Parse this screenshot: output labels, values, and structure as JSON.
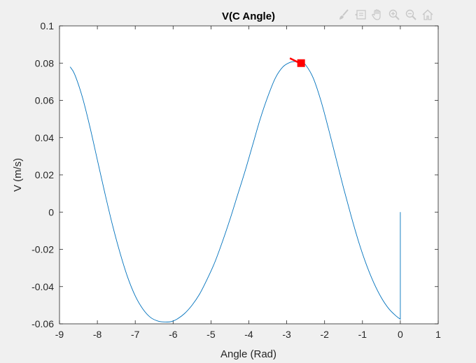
{
  "chart_data": {
    "type": "line",
    "title": "V(C Angle)",
    "xlabel": "Angle (Rad)",
    "ylabel": "V (m/s)",
    "xlim": [
      -9,
      1
    ],
    "ylim": [
      -0.06,
      0.1
    ],
    "xticks": [
      "-9",
      "-8",
      "-7",
      "-6",
      "-5",
      "-4",
      "-3",
      "-2",
      "-1",
      "0",
      "1"
    ],
    "yticks": [
      "-0.06",
      "-0.04",
      "-0.02",
      "0",
      "0.02",
      "0.04",
      "0.06",
      "0.08",
      "0.1"
    ],
    "grid": false,
    "series": [
      {
        "color": "#0072bd",
        "x": [
          -8.72,
          -8.6,
          -8.4,
          -8.2,
          -8.0,
          -7.8,
          -7.6,
          -7.4,
          -7.2,
          -7.0,
          -6.8,
          -6.6,
          -6.4,
          -6.2,
          -6.05,
          -5.9,
          -5.7,
          -5.5,
          -5.3,
          -5.1,
          -4.9,
          -4.7,
          -4.5,
          -4.3,
          -4.1,
          -3.9,
          -3.7,
          -3.5,
          -3.3,
          -3.1,
          -2.9,
          -2.75,
          -2.62,
          -2.5,
          -2.3,
          -2.1,
          -1.9,
          -1.7,
          -1.5,
          -1.3,
          -1.1,
          -0.9,
          -0.7,
          -0.5,
          -0.3,
          -0.1,
          0.0,
          0.0
        ],
        "y": [
          0.078,
          0.074,
          0.062,
          0.046,
          0.028,
          0.01,
          -0.007,
          -0.022,
          -0.035,
          -0.045,
          -0.052,
          -0.0565,
          -0.0585,
          -0.059,
          -0.0588,
          -0.0575,
          -0.0545,
          -0.05,
          -0.044,
          -0.036,
          -0.027,
          -0.016,
          -0.004,
          0.009,
          0.022,
          0.036,
          0.05,
          0.062,
          0.072,
          0.078,
          0.0805,
          0.0808,
          0.0805,
          0.079,
          0.072,
          0.06,
          0.045,
          0.029,
          0.013,
          -0.002,
          -0.016,
          -0.028,
          -0.038,
          -0.046,
          -0.052,
          -0.056,
          -0.0575,
          0.0
        ]
      }
    ],
    "marker": {
      "color": "#ff0000",
      "x": -2.62,
      "y": 0.08
    }
  },
  "toolbar": {
    "icons": [
      "brush-icon",
      "data-cursor-icon",
      "pan-hand-icon",
      "zoom-in-icon",
      "zoom-out-icon",
      "home-icon"
    ]
  }
}
